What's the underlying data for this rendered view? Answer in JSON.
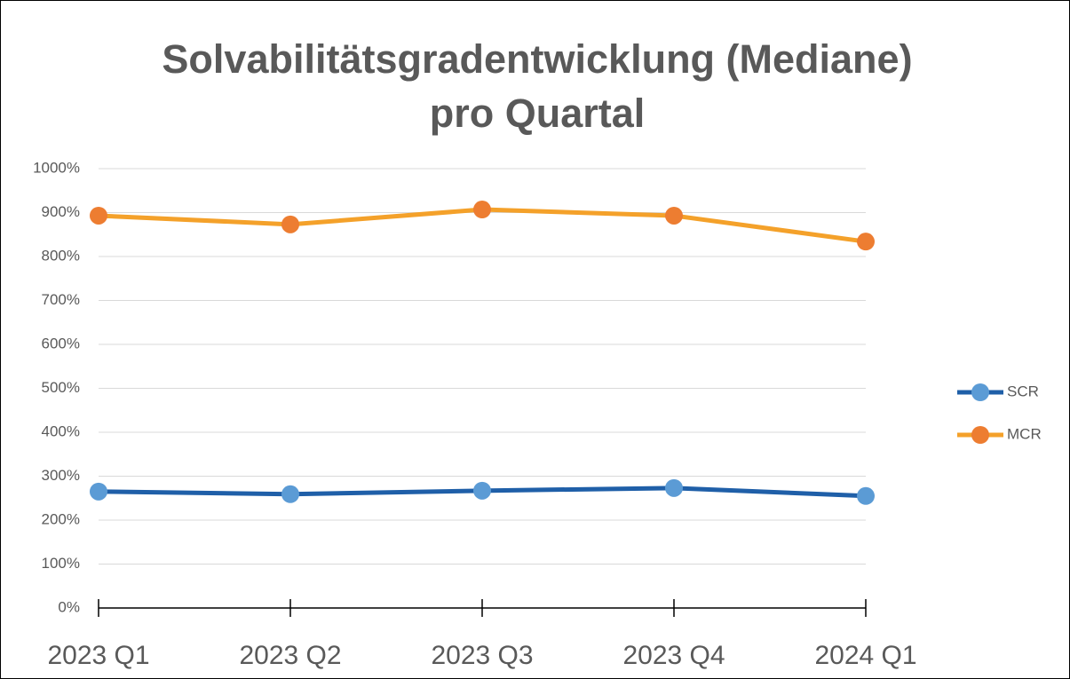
{
  "chart_data": {
    "type": "line",
    "title": [
      "Solvabilitätsgradentwicklung (Mediane)",
      "pro Quartal"
    ],
    "categories": [
      "2023 Q1",
      "2023 Q2",
      "2023 Q3",
      "2023 Q4",
      "2024 Q1"
    ],
    "series": [
      {
        "name": "SCR",
        "color": "#1F5FA8",
        "marker_color": "#5B9BD5",
        "values": [
          265,
          259,
          267,
          273,
          255
        ]
      },
      {
        "name": "MCR",
        "color": "#F4A12A",
        "marker_color": "#ED7D31",
        "values": [
          893,
          873,
          907,
          893,
          834
        ]
      }
    ],
    "ylim": [
      0,
      1000
    ],
    "yticks": [
      {
        "value": 0,
        "label": "0%"
      },
      {
        "value": 100,
        "label": "100%"
      },
      {
        "value": 200,
        "label": "200%"
      },
      {
        "value": 300,
        "label": "300%"
      },
      {
        "value": 400,
        "label": "400%"
      },
      {
        "value": 500,
        "label": "500%"
      },
      {
        "value": 600,
        "label": "600%"
      },
      {
        "value": 700,
        "label": "700%"
      },
      {
        "value": 800,
        "label": "800%"
      },
      {
        "value": 900,
        "label": "900%"
      },
      {
        "value": 1000,
        "label": "1000%"
      }
    ],
    "grid": true,
    "legend": "right"
  }
}
